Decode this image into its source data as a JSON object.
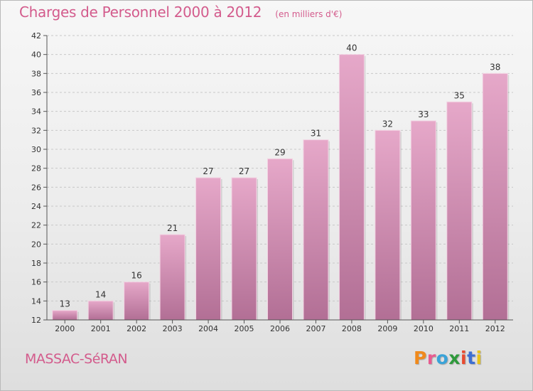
{
  "header": {
    "title": "Charges de Personnel 2000 à 2012",
    "subtitle": "(en milliers d'€)"
  },
  "footer": {
    "commune": "MASSAC-SéRAN",
    "logo": {
      "text": "Proxiti",
      "letter_colors": [
        "#f08a1c",
        "#e85b8f",
        "#3aa3d8",
        "#2f9a3c",
        "#e94a2f",
        "#3d6fd1",
        "#e8c21a"
      ]
    }
  },
  "colors": {
    "title": "#d35b8c",
    "bar_top": "#e6a8c9",
    "bar_bottom": "#b26f95",
    "grid": "#c8c8c8",
    "axis": "#555555",
    "text": "#333333"
  },
  "chart_data": {
    "type": "bar",
    "title": "Charges de Personnel 2000 à 2012",
    "subtitle": "(en milliers d'€)",
    "categories": [
      "2000",
      "2001",
      "2002",
      "2003",
      "2004",
      "2005",
      "2006",
      "2007",
      "2008",
      "2009",
      "2010",
      "2011",
      "2012"
    ],
    "values": [
      13,
      14,
      16,
      21,
      27,
      27,
      29,
      31,
      40,
      32,
      33,
      35,
      38
    ],
    "ylim": [
      12,
      42
    ],
    "yticks": [
      12,
      14,
      16,
      18,
      20,
      22,
      24,
      26,
      28,
      30,
      32,
      34,
      36,
      38,
      40,
      42
    ],
    "grid": true,
    "data_labels": true
  }
}
